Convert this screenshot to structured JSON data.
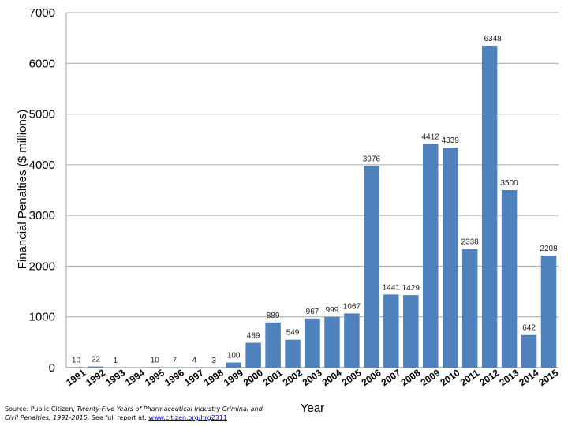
{
  "chart_data": {
    "type": "bar",
    "title": "",
    "ylabel": "Financial Penalties ($ millions)",
    "xlabel": "Year",
    "ylim": [
      0,
      7000
    ],
    "yticks": [
      0,
      1000,
      2000,
      3000,
      4000,
      5000,
      6000,
      7000
    ],
    "grid": true,
    "bar_color": "#4f81bd",
    "categories": [
      "1991",
      "1992",
      "1993",
      "1994",
      "1995",
      "1996",
      "1997",
      "1998",
      "1999",
      "2000",
      "2001",
      "2002",
      "2003",
      "2004",
      "2005",
      "2006",
      "2007",
      "2008",
      "2009",
      "2010",
      "2011",
      "2012",
      "2013",
      "2014",
      "2015"
    ],
    "values": [
      10,
      22,
      1,
      0,
      10,
      7,
      4,
      3,
      100,
      489,
      889,
      549,
      967,
      999,
      1067,
      3976,
      1441,
      1429,
      4412,
      4339,
      2338,
      6348,
      3500,
      642,
      2208
    ],
    "data_labels": [
      "10",
      "22",
      "1",
      "",
      "10",
      "7",
      "4",
      "3",
      "100",
      "489",
      "889",
      "549",
      "967",
      "999",
      "1067",
      "3976",
      "1441",
      "1429",
      "4412",
      "4339",
      "2338",
      "6348",
      "3500",
      "642",
      "2208"
    ]
  },
  "source": {
    "prefix": "Source: Public Citizen, ",
    "title": "Twenty-Five Years of Pharmaceutical Industry Criminal and Civil Penalties: 1991-2015",
    "middle": ". See full report at: ",
    "link": "www.citizen.org/hrg2311"
  }
}
